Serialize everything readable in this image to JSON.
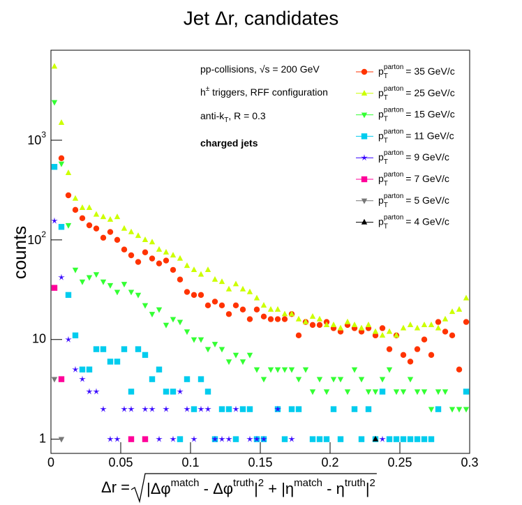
{
  "chart_data": {
    "type": "scatter",
    "title": "Jet Δr, candidates",
    "ylabel": "counts",
    "xlabel": {
      "lhs": "Δr = ",
      "parts": [
        "|Δφ",
        "match",
        " - Δφ",
        "truth",
        "|",
        "2",
        " + |η",
        "match",
        " - η",
        "truth",
        "|",
        "2"
      ]
    },
    "annotations": [
      {
        "parts": [
          "pp-collisions, √s = 200 GeV"
        ]
      },
      {
        "parts": [
          "h",
          "±",
          " triggers, RFF configuration"
        ]
      },
      {
        "parts": [
          "anti-k",
          "T",
          ", R = 0.3"
        ]
      },
      {
        "parts": [
          "charged jets"
        ],
        "bold": true
      }
    ],
    "legend_label": {
      "base": "p",
      "sub": "T",
      "sup": "parton"
    },
    "log_y": true,
    "xlim": [
      0,
      0.3
    ],
    "xticks": [
      0,
      0.05,
      0.1,
      0.15,
      0.2,
      0.25,
      0.3
    ],
    "ylim": [
      0.72,
      8000
    ],
    "yticks": [
      1,
      10,
      {
        "value": 100,
        "label": "10",
        "exp": "2"
      },
      {
        "value": 1000,
        "label": "10",
        "exp": "3"
      }
    ],
    "x": [
      0.0025,
      0.0075,
      0.0125,
      0.0175,
      0.0225,
      0.0275,
      0.0325,
      0.0375,
      0.0425,
      0.0475,
      0.0525,
      0.0575,
      0.0625,
      0.0675,
      0.0725,
      0.0775,
      0.0825,
      0.0875,
      0.0925,
      0.0975,
      0.1025,
      0.1075,
      0.1125,
      0.1175,
      0.1225,
      0.1275,
      0.1325,
      0.1375,
      0.1425,
      0.1475,
      0.1525,
      0.1575,
      0.1625,
      0.1675,
      0.1725,
      0.1775,
      0.1825,
      0.1875,
      0.1925,
      0.1975,
      0.2025,
      0.2075,
      0.2125,
      0.2175,
      0.2225,
      0.2275,
      0.2325,
      0.2375,
      0.2425,
      0.2475,
      0.2525,
      0.2575,
      0.2625,
      0.2675,
      0.2725,
      0.2775,
      0.2825,
      0.2875,
      0.2925,
      0.2975
    ],
    "series": [
      {
        "name": "= 35 GeV/c",
        "color": "#ff3300",
        "marker": "circle",
        "values": [
          null,
          660,
          280,
          200,
          165,
          140,
          130,
          105,
          120,
          100,
          80,
          70,
          60,
          75,
          65,
          58,
          62,
          50,
          40,
          30,
          28,
          28,
          22,
          24,
          22,
          18,
          22,
          20,
          16,
          20,
          17,
          16,
          16,
          16,
          18,
          11,
          15,
          14,
          14,
          15,
          13,
          12,
          14,
          13,
          12,
          13,
          11,
          13,
          8,
          11,
          7,
          6,
          8,
          10,
          7,
          15,
          12,
          11,
          5,
          15
        ]
      },
      {
        "name": "= 25 GeV/c",
        "color": "#ccff00",
        "marker": "triangle-up",
        "values": [
          5500,
          1500,
          470,
          260,
          210,
          210,
          180,
          170,
          160,
          170,
          130,
          120,
          110,
          100,
          95,
          80,
          75,
          70,
          65,
          55,
          50,
          45,
          50,
          40,
          38,
          32,
          36,
          32,
          30,
          26,
          22,
          20,
          20,
          18,
          18,
          16,
          15,
          17,
          16,
          14,
          14,
          13,
          15,
          14,
          13,
          14,
          12,
          11,
          12,
          11,
          13,
          14,
          13,
          14,
          14,
          13,
          16,
          19,
          20,
          26
        ]
      },
      {
        "name": "= 15 GeV/c",
        "color": "#33ff33",
        "marker": "triangle-down",
        "values": [
          2400,
          580,
          140,
          50,
          38,
          42,
          45,
          38,
          35,
          30,
          36,
          30,
          28,
          22,
          18,
          20,
          14,
          16,
          15,
          12,
          10,
          10,
          8,
          9,
          8,
          6,
          7,
          6,
          7,
          5,
          4,
          5,
          5,
          5,
          5,
          4,
          5,
          3,
          4,
          3,
          4,
          4,
          3,
          5,
          4,
          3,
          3,
          4,
          5,
          3,
          3,
          4,
          3,
          3,
          2,
          3,
          3,
          2,
          2,
          2
        ]
      },
      {
        "name": "= 11 GeV/c",
        "color": "#00ccee",
        "marker": "square",
        "values": [
          540,
          135,
          28,
          11,
          5,
          5,
          8,
          8,
          6,
          6,
          8,
          3,
          8,
          7,
          4,
          5,
          3,
          3,
          1,
          4,
          2,
          4,
          3,
          1,
          2,
          2,
          1,
          2,
          2,
          1,
          1,
          null,
          2,
          1,
          2,
          2,
          null,
          1,
          1,
          1,
          2,
          1,
          null,
          2,
          1,
          2,
          1,
          3,
          1,
          1,
          1,
          1,
          1,
          1,
          1,
          2,
          null,
          null,
          null,
          3
        ]
      },
      {
        "name": "= 9 GeV/c",
        "color": "#3300ff",
        "marker": "star",
        "values": [
          155,
          42,
          10,
          5,
          4,
          3,
          3,
          2,
          1,
          1,
          2,
          2,
          null,
          2,
          2,
          1,
          2,
          1,
          3,
          2,
          1,
          2,
          2,
          1,
          1,
          1,
          2,
          null,
          1,
          1,
          1,
          null,
          2,
          null,
          1,
          null,
          null,
          null,
          null,
          null,
          null,
          null,
          null,
          null,
          null,
          null,
          null,
          1,
          null,
          null,
          null,
          null,
          null,
          null,
          null,
          null,
          null,
          null,
          null,
          null
        ]
      },
      {
        "name": "= 7 GeV/c",
        "color": "#ff0099",
        "marker": "square",
        "values": [
          33,
          4,
          null,
          null,
          null,
          null,
          null,
          null,
          null,
          null,
          null,
          1,
          null,
          1,
          null,
          null,
          null,
          null,
          null,
          null,
          null,
          null,
          null,
          null,
          null,
          null,
          null,
          null,
          null,
          null,
          null,
          null,
          null,
          null,
          null,
          null,
          null,
          null,
          null,
          null,
          null,
          null,
          null,
          null,
          null,
          null,
          null,
          null,
          null,
          null,
          null,
          null,
          null,
          null,
          null,
          null,
          null,
          null,
          null,
          null
        ]
      },
      {
        "name": "= 5 GeV/c",
        "color": "#777777",
        "marker": "triangle-down",
        "values": [
          4,
          1,
          null,
          null,
          null,
          null,
          null,
          null,
          null,
          null,
          null,
          null,
          null,
          null,
          null,
          null,
          null,
          null,
          null,
          null,
          null,
          null,
          null,
          null,
          null,
          null,
          null,
          null,
          null,
          null,
          null,
          null,
          null,
          null,
          null,
          null,
          null,
          null,
          null,
          null,
          null,
          null,
          null,
          null,
          null,
          null,
          null,
          null,
          null,
          null,
          null,
          null,
          null,
          null,
          null,
          null,
          null,
          null,
          null,
          null
        ]
      },
      {
        "name": "= 4 GeV/c",
        "color": "#000000",
        "marker": "triangle-up",
        "values": [
          null,
          null,
          null,
          null,
          null,
          null,
          null,
          null,
          null,
          null,
          null,
          null,
          null,
          null,
          null,
          null,
          null,
          null,
          null,
          null,
          null,
          null,
          null,
          null,
          null,
          null,
          null,
          null,
          null,
          null,
          null,
          null,
          null,
          null,
          null,
          null,
          null,
          null,
          null,
          null,
          null,
          null,
          null,
          null,
          null,
          null,
          1,
          null,
          null,
          null,
          null,
          null,
          null,
          null,
          null,
          null,
          null,
          null,
          null,
          null
        ]
      }
    ]
  }
}
